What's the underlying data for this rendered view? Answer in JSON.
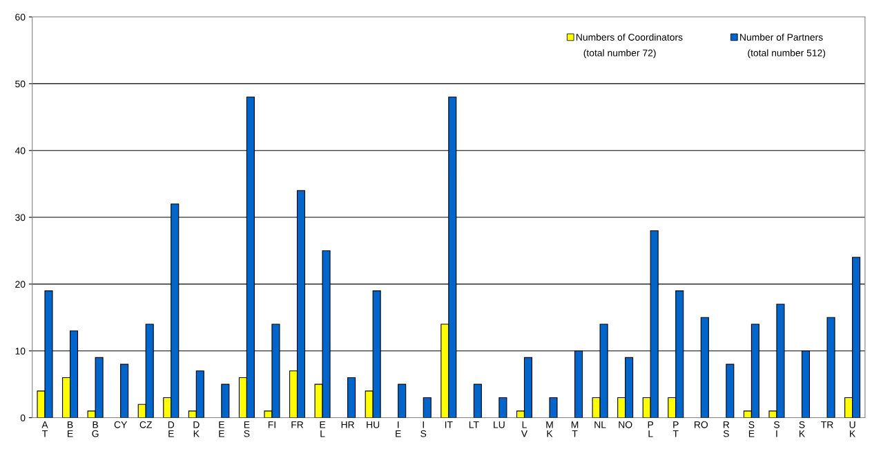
{
  "chart_data": {
    "type": "bar",
    "categories": [
      "A\nT",
      "B\nE",
      "B\nG",
      "CY",
      "CZ",
      "D\nE",
      "D\nK",
      "E\nE",
      "E\nS",
      "FI",
      "FR",
      "E\nL",
      "HR",
      "HU",
      "I\nE",
      "I\nS",
      "IT",
      "LT",
      "LU",
      "L\nV",
      "M\nK",
      "M\nT",
      "NL",
      "NO",
      "P\nL",
      "P\nT",
      "RO",
      "R\nS",
      "S\nE",
      "S\nI",
      "S\nK",
      "TR",
      "U\nK"
    ],
    "series": [
      {
        "name": "Numbers of Coordinators",
        "color": "#ffff00",
        "values": [
          4,
          6,
          1,
          0,
          2,
          3,
          1,
          0,
          6,
          1,
          7,
          5,
          0,
          4,
          0,
          0,
          14,
          0,
          0,
          1,
          0,
          0,
          3,
          3,
          3,
          3,
          0,
          0,
          1,
          1,
          0,
          0,
          3
        ]
      },
      {
        "name": "Number of Partners",
        "color": "#0066cc",
        "values": [
          19,
          13,
          9,
          8,
          14,
          32,
          7,
          5,
          48,
          14,
          34,
          25,
          6,
          19,
          5,
          3,
          48,
          5,
          3,
          9,
          3,
          10,
          14,
          9,
          28,
          19,
          15,
          8,
          14,
          17,
          10,
          15,
          24
        ]
      }
    ],
    "annotations": [
      "(total number 72)",
      "(total number 512)"
    ],
    "ylim": [
      0,
      60
    ],
    "yticks": [
      0,
      10,
      20,
      30,
      40,
      50,
      60
    ],
    "grid": "y",
    "legend": "top right"
  }
}
